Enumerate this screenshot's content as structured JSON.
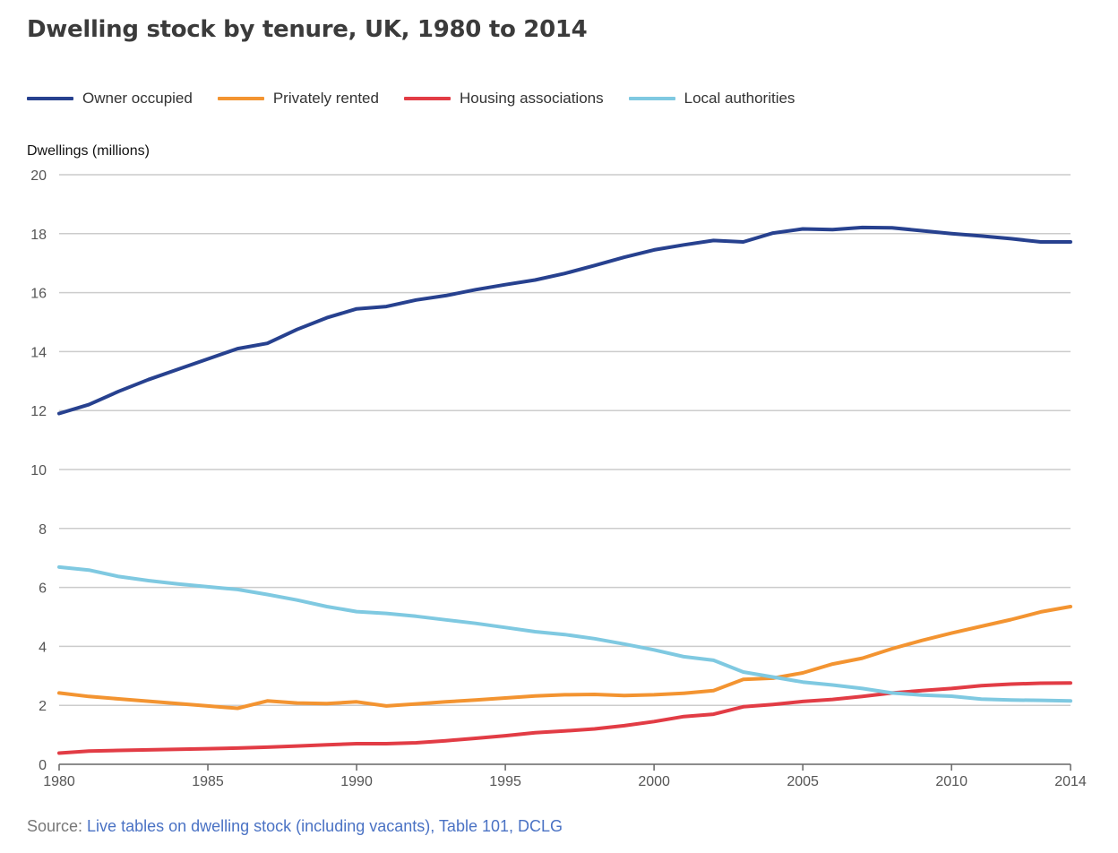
{
  "title": "Dwelling stock by tenure, UK, 1980 to 2014",
  "source": {
    "prefix": "Source: ",
    "link_text": "Live tables on dwelling stock (including vacants), Table 101, DCLG"
  },
  "chart_data": {
    "type": "line",
    "title": "Dwelling stock by tenure, UK, 1980 to 2014",
    "xlabel": "",
    "ylabel": "Dwellings (millions)",
    "xlim": [
      1980,
      2014
    ],
    "ylim": [
      0,
      20
    ],
    "grid": true,
    "legend_position": "top-left",
    "x_ticks": [
      "1980",
      "1985",
      "1990",
      "1995",
      "2000",
      "2005",
      "2010",
      "2014"
    ],
    "y_ticks": [
      "0",
      "2",
      "4",
      "6",
      "8",
      "10",
      "12",
      "14",
      "16",
      "18",
      "20"
    ],
    "x": [
      1980,
      1981,
      1982,
      1983,
      1984,
      1985,
      1986,
      1987,
      1988,
      1989,
      1990,
      1991,
      1992,
      1993,
      1994,
      1995,
      1996,
      1997,
      1998,
      1999,
      2000,
      2001,
      2002,
      2003,
      2004,
      2005,
      2006,
      2007,
      2008,
      2009,
      2010,
      2011,
      2012,
      2013,
      2014
    ],
    "series": [
      {
        "name": "Owner occupied",
        "color": "#27418f",
        "values": [
          11.9,
          12.2,
          12.65,
          13.05,
          13.4,
          13.75,
          14.1,
          14.28,
          14.75,
          15.15,
          15.45,
          15.53,
          15.75,
          15.9,
          16.1,
          16.27,
          16.43,
          16.65,
          16.92,
          17.2,
          17.45,
          17.62,
          17.77,
          17.72,
          18.02,
          18.16,
          18.14,
          18.21,
          18.2,
          18.1,
          18.0,
          17.92,
          17.83,
          17.72,
          17.72
        ]
      },
      {
        "name": "Privately rented",
        "color": "#f39431",
        "values": [
          2.42,
          2.3,
          2.22,
          2.14,
          2.06,
          1.98,
          1.9,
          2.15,
          2.08,
          2.06,
          2.12,
          1.98,
          2.05,
          2.12,
          2.18,
          2.25,
          2.32,
          2.36,
          2.37,
          2.33,
          2.36,
          2.41,
          2.5,
          2.88,
          2.92,
          3.1,
          3.4,
          3.6,
          3.92,
          4.2,
          4.45,
          4.68,
          4.91,
          5.17,
          5.35
        ]
      },
      {
        "name": "Housing associations",
        "color": "#e23c45",
        "values": [
          0.38,
          0.45,
          0.47,
          0.49,
          0.51,
          0.53,
          0.55,
          0.58,
          0.62,
          0.66,
          0.7,
          0.7,
          0.73,
          0.8,
          0.88,
          0.97,
          1.07,
          1.13,
          1.2,
          1.31,
          1.45,
          1.62,
          1.7,
          1.95,
          2.03,
          2.13,
          2.2,
          2.3,
          2.42,
          2.5,
          2.57,
          2.67,
          2.72,
          2.75,
          2.76
        ]
      },
      {
        "name": "Local authorities",
        "color": "#7fc9e1",
        "values": [
          6.69,
          6.59,
          6.37,
          6.23,
          6.12,
          6.02,
          5.93,
          5.76,
          5.57,
          5.35,
          5.18,
          5.12,
          5.02,
          4.9,
          4.78,
          4.64,
          4.5,
          4.4,
          4.26,
          4.08,
          3.88,
          3.65,
          3.53,
          3.13,
          2.96,
          2.79,
          2.69,
          2.57,
          2.42,
          2.35,
          2.31,
          2.21,
          2.18,
          2.17,
          2.15
        ]
      }
    ]
  }
}
